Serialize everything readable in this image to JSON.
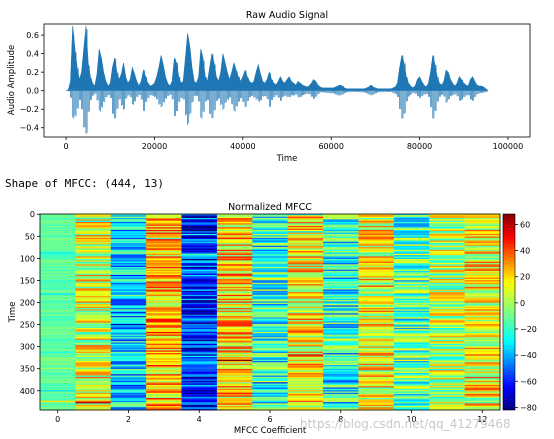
{
  "chart_data": [
    {
      "type": "line",
      "title": "Raw Audio Signal",
      "xlabel": "Time",
      "ylabel": "Audio Amplitude",
      "xlim": [
        -5000,
        105000
      ],
      "ylim": [
        -0.5,
        0.72
      ],
      "xticks": [
        0,
        20000,
        40000,
        60000,
        80000,
        100000
      ],
      "yticks": [
        -0.4,
        -0.2,
        0.0,
        0.2,
        0.4,
        0.6
      ],
      "xtick_labels": [
        "0",
        "20000",
        "40000",
        "60000",
        "80000",
        "100000"
      ],
      "ytick_labels": [
        "−0.4",
        "−0.2",
        "0.0",
        "0.2",
        "0.4",
        "0.6"
      ],
      "series_color": "#1f77b4",
      "envelope": {
        "x": [
          0,
          500,
          1000,
          1500,
          2000,
          2500,
          3000,
          3500,
          4000,
          4500,
          5000,
          5500,
          6000,
          6500,
          7000,
          7500,
          8000,
          8500,
          9000,
          9500,
          10000,
          10500,
          11000,
          11500,
          12000,
          12500,
          13000,
          13500,
          14000,
          14500,
          15000,
          15500,
          16000,
          16500,
          17000,
          17500,
          18000,
          18500,
          19000,
          19500,
          20000,
          20500,
          21000,
          21500,
          22000,
          22500,
          23000,
          23500,
          24000,
          24500,
          25000,
          25500,
          26000,
          26500,
          27000,
          27500,
          28000,
          28500,
          29000,
          29500,
          30000,
          30500,
          31000,
          31500,
          32000,
          32500,
          33000,
          33500,
          34000,
          34500,
          35000,
          35500,
          36000,
          36500,
          37000,
          37500,
          38000,
          38500,
          39000,
          39500,
          40000,
          40500,
          41000,
          41500,
          42000,
          42500,
          43000,
          43500,
          44000,
          44500,
          45000,
          45500,
          46000,
          46500,
          47000,
          47500,
          48000,
          48500,
          49000,
          49500,
          50000,
          50500,
          51000,
          51500,
          52000,
          52500,
          53000,
          53500,
          54000,
          54500,
          55000,
          55500,
          56000,
          56500,
          57000,
          57500,
          58000,
          58500,
          59000,
          59500,
          60000,
          60500,
          61000,
          61500,
          62000,
          62500,
          63000,
          63500,
          64000,
          64500,
          65000,
          65500,
          66000,
          66500,
          67000,
          67500,
          68000,
          68500,
          69000,
          69500,
          70000,
          70500,
          71000,
          71500,
          72000,
          72500,
          73000,
          73500,
          74000,
          74500,
          75000,
          75500,
          76000,
          76500,
          77000,
          77500,
          78000,
          78500,
          79000,
          79500,
          80000,
          80500,
          81000,
          81500,
          82000,
          82500,
          83000,
          83500,
          84000,
          84500,
          85000,
          85500,
          86000,
          86500,
          87000,
          87500,
          88000,
          88500,
          89000,
          89500,
          90000,
          90500,
          91000,
          91500,
          92000,
          92500,
          93000,
          93500,
          94000,
          94500,
          95000,
          95500,
          96000,
          96500,
          97000,
          97500,
          98000
        ],
        "max": [
          0.0,
          0.01,
          0.1,
          0.7,
          0.45,
          0.25,
          0.12,
          0.2,
          0.45,
          0.7,
          0.3,
          0.15,
          0.08,
          0.05,
          0.18,
          0.45,
          0.35,
          0.2,
          0.1,
          0.05,
          0.08,
          0.25,
          0.35,
          0.2,
          0.12,
          0.18,
          0.3,
          0.15,
          0.08,
          0.12,
          0.25,
          0.18,
          0.1,
          0.05,
          0.1,
          0.22,
          0.15,
          0.08,
          0.05,
          0.06,
          0.08,
          0.15,
          0.25,
          0.38,
          0.28,
          0.15,
          0.08,
          0.05,
          0.1,
          0.35,
          0.3,
          0.15,
          0.08,
          0.1,
          0.35,
          0.62,
          0.48,
          0.25,
          0.1,
          0.08,
          0.15,
          0.45,
          0.35,
          0.15,
          0.1,
          0.25,
          0.4,
          0.3,
          0.15,
          0.1,
          0.2,
          0.4,
          0.3,
          0.2,
          0.12,
          0.2,
          0.3,
          0.22,
          0.15,
          0.1,
          0.15,
          0.22,
          0.15,
          0.1,
          0.08,
          0.1,
          0.2,
          0.28,
          0.18,
          0.1,
          0.08,
          0.12,
          0.2,
          0.12,
          0.08,
          0.06,
          0.1,
          0.15,
          0.1,
          0.08,
          0.12,
          0.15,
          0.1,
          0.08,
          0.06,
          0.1,
          0.08,
          0.06,
          0.05,
          0.04,
          0.05,
          0.08,
          0.12,
          0.1,
          0.06,
          0.04,
          0.03,
          0.03,
          0.03,
          0.03,
          0.03,
          0.03,
          0.04,
          0.05,
          0.06,
          0.05,
          0.03,
          0.02,
          0.02,
          0.02,
          0.02,
          0.02,
          0.02,
          0.02,
          0.02,
          0.02,
          0.03,
          0.04,
          0.06,
          0.04,
          0.03,
          0.02,
          0.02,
          0.02,
          0.02,
          0.02,
          0.02,
          0.02,
          0.03,
          0.04,
          0.08,
          0.25,
          0.38,
          0.3,
          0.15,
          0.08,
          0.05,
          0.03,
          0.05,
          0.12,
          0.15,
          0.1,
          0.06,
          0.04,
          0.08,
          0.2,
          0.38,
          0.28,
          0.15,
          0.08,
          0.06,
          0.1,
          0.22,
          0.2,
          0.12,
          0.08,
          0.05,
          0.08,
          0.15,
          0.12,
          0.08,
          0.06,
          0.05,
          0.12,
          0.15,
          0.1,
          0.06,
          0.05,
          0.05,
          0.04,
          0.02,
          0.0
        ],
        "min": [
          0.0,
          -0.01,
          -0.1,
          -0.35,
          -0.3,
          -0.2,
          -0.1,
          -0.2,
          -0.4,
          -0.48,
          -0.25,
          -0.12,
          -0.07,
          -0.05,
          -0.18,
          -0.35,
          -0.25,
          -0.15,
          -0.08,
          -0.05,
          -0.08,
          -0.25,
          -0.3,
          -0.2,
          -0.1,
          -0.18,
          -0.25,
          -0.12,
          -0.08,
          -0.12,
          -0.22,
          -0.15,
          -0.08,
          -0.05,
          -0.1,
          -0.22,
          -0.12,
          -0.08,
          -0.05,
          -0.06,
          -0.08,
          -0.12,
          -0.22,
          -0.3,
          -0.2,
          -0.12,
          -0.07,
          -0.05,
          -0.1,
          -0.28,
          -0.22,
          -0.12,
          -0.08,
          -0.1,
          -0.3,
          -0.45,
          -0.35,
          -0.2,
          -0.1,
          -0.08,
          -0.15,
          -0.35,
          -0.25,
          -0.12,
          -0.1,
          -0.25,
          -0.3,
          -0.22,
          -0.12,
          -0.1,
          -0.2,
          -0.3,
          -0.22,
          -0.15,
          -0.1,
          -0.18,
          -0.25,
          -0.18,
          -0.12,
          -0.08,
          -0.12,
          -0.18,
          -0.12,
          -0.08,
          -0.07,
          -0.1,
          -0.15,
          -0.2,
          -0.15,
          -0.08,
          -0.07,
          -0.1,
          -0.18,
          -0.1,
          -0.07,
          -0.05,
          -0.08,
          -0.12,
          -0.08,
          -0.07,
          -0.1,
          -0.12,
          -0.08,
          -0.07,
          -0.05,
          -0.08,
          -0.07,
          -0.05,
          -0.04,
          -0.03,
          -0.04,
          -0.07,
          -0.1,
          -0.08,
          -0.05,
          -0.03,
          -0.03,
          -0.03,
          -0.03,
          -0.03,
          -0.03,
          -0.03,
          -0.04,
          -0.05,
          -0.05,
          -0.04,
          -0.03,
          -0.02,
          -0.02,
          -0.02,
          -0.02,
          -0.02,
          -0.02,
          -0.02,
          -0.02,
          -0.02,
          -0.03,
          -0.04,
          -0.05,
          -0.04,
          -0.03,
          -0.02,
          -0.02,
          -0.02,
          -0.02,
          -0.02,
          -0.02,
          -0.02,
          -0.03,
          -0.04,
          -0.07,
          -0.2,
          -0.3,
          -0.25,
          -0.12,
          -0.07,
          -0.05,
          -0.03,
          -0.05,
          -0.1,
          -0.12,
          -0.08,
          -0.05,
          -0.04,
          -0.07,
          -0.18,
          -0.3,
          -0.22,
          -0.12,
          -0.07,
          -0.05,
          -0.08,
          -0.18,
          -0.15,
          -0.1,
          -0.07,
          -0.05,
          -0.07,
          -0.12,
          -0.1,
          -0.07,
          -0.05,
          -0.05,
          -0.1,
          -0.12,
          -0.08,
          -0.05,
          -0.04,
          -0.04,
          -0.03,
          -0.02,
          0.0
        ]
      }
    },
    {
      "type": "heatmap",
      "title": "Normalized MFCC",
      "xlabel": "MFCC Coefficient",
      "ylabel": "Time",
      "shape": [
        444,
        13
      ],
      "xlim": [
        -0.5,
        12.5
      ],
      "ylim": [
        443.5,
        -0.5
      ],
      "xticks": [
        0,
        2,
        4,
        6,
        8,
        10,
        12
      ],
      "yticks": [
        0,
        50,
        100,
        150,
        200,
        250,
        300,
        350,
        400
      ],
      "xtick_labels": [
        "0",
        "2",
        "4",
        "6",
        "8",
        "10",
        "12"
      ],
      "ytick_labels": [
        "0",
        "50",
        "100",
        "150",
        "200",
        "250",
        "300",
        "350",
        "400"
      ],
      "colormap": "jet",
      "colorbar_range": [
        -82,
        68
      ],
      "colorbar_ticks": [
        -80,
        -60,
        -40,
        -20,
        0,
        20,
        40,
        60
      ],
      "colorbar_tick_labels": [
        "−80",
        "−60",
        "−40",
        "−20",
        "0",
        "20",
        "40",
        "60"
      ],
      "column_mean": [
        -12,
        8,
        -30,
        22,
        -55,
        18,
        -20,
        14,
        -25,
        10,
        -15,
        0,
        12
      ]
    }
  ],
  "output_text": "Shape of MFCC: (444, 13)",
  "watermark": "https://blog.csdn.net/qq_41279468"
}
